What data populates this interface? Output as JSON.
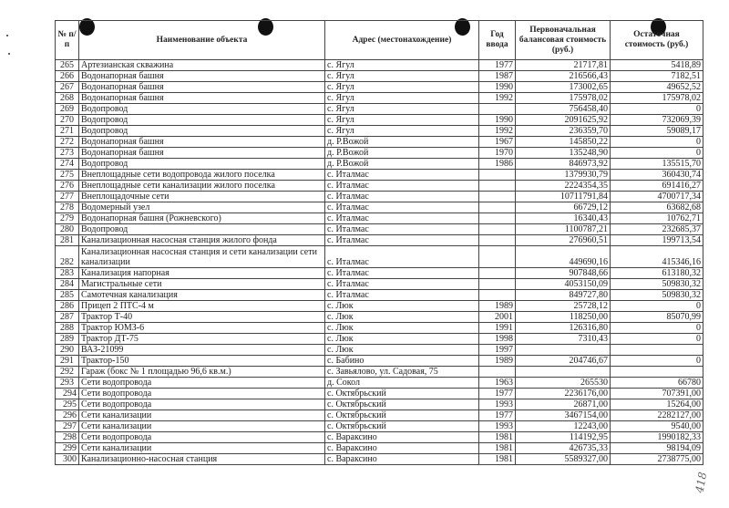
{
  "header": {
    "no": "№ п/п",
    "name": "Наименование объекта",
    "address": "Адрес (местонахождение)",
    "year": "Год ввода",
    "initial": "Первоначальная балансовая стоимость (руб.)",
    "residual": "Остаточная стоимость (руб.)"
  },
  "rows": [
    [
      "265",
      "Артезианская скважина",
      "с. Ягул",
      "1977",
      "21717,81",
      "5418,89"
    ],
    [
      "266",
      "Водонапорная башня",
      "с. Ягул",
      "1987",
      "216566,43",
      "7182,51"
    ],
    [
      "267",
      "Водонапорная башня",
      "с. Ягул",
      "1990",
      "173002,65",
      "49652,52"
    ],
    [
      "268",
      "Водонапорная башня",
      "с. Ягул",
      "1992",
      "175978,02",
      "175978,02"
    ],
    [
      "269",
      "Водопровод",
      "с. Ягул",
      "",
      "756458,40",
      "0"
    ],
    [
      "270",
      "Водопровод",
      "с. Ягул",
      "1990",
      "2091625,92",
      "732069,39"
    ],
    [
      "271",
      "Водопровод",
      "с. Ягул",
      "1992",
      "236359,70",
      "59089,17"
    ],
    [
      "272",
      "Водонапорная башня",
      "д. Р.Вожой",
      "1967",
      "145850,22",
      "0"
    ],
    [
      "273",
      "Водонапорная башня",
      "д. Р.Вожой",
      "1970",
      "135248,90",
      "0"
    ],
    [
      "274",
      "Водопровод",
      "д. Р.Вожой",
      "1986",
      "846973,92",
      "135515,70"
    ],
    [
      "275",
      "Внеплощадные сети водопровода жилого поселка",
      "с. Италмас",
      "",
      "1379930,79",
      "360430,74"
    ],
    [
      "276",
      "Внеплощадные сети канализации жилого поселка",
      "с. Италмас",
      "",
      "2224354,35",
      "691416,27"
    ],
    [
      "277",
      "Внеплощадочные сети",
      "с. Италмас",
      "",
      "10711791,84",
      "4700717,34"
    ],
    [
      "278",
      "Водомерный узел",
      "с. Италмас",
      "",
      "66729,12",
      "63682,68"
    ],
    [
      "279",
      "Водонапорная башня (Рожневского)",
      "с. Италмас",
      "",
      "16340,43",
      "10762,71"
    ],
    [
      "280",
      "Водопровод",
      "с. Италмас",
      "",
      "1100787,21",
      "232685,37"
    ],
    [
      "281",
      "Канализационная насосная станция жилого фонда",
      "с. Италмас",
      "",
      "276960,51",
      "199713,54"
    ],
    [
      "282",
      "Канализационная насосная станция и сети канализации сети канализации",
      "с. Италмас",
      "",
      "449690,16",
      "415346,16"
    ],
    [
      "283",
      "Канализация напорная",
      "с. Италмас",
      "",
      "907848,66",
      "613180,32"
    ],
    [
      "284",
      "Магистральные сети",
      "с. Италмас",
      "",
      "4053150,09",
      "509830,32"
    ],
    [
      "285",
      "Самотечная канализация",
      "с. Италмас",
      "",
      "849727,80",
      "509830,32"
    ],
    [
      "286",
      "Прицеп 2 ПТС-4 м",
      "с. Люк",
      "1989",
      "25728,12",
      "0"
    ],
    [
      "287",
      "Трактор Т-40",
      "с. Люк",
      "2001",
      "118250,00",
      "85070,99"
    ],
    [
      "288",
      "Трактор ЮМЗ-6",
      "с. Люк",
      "1991",
      "126316,80",
      "0"
    ],
    [
      "289",
      "Трактор ДТ-75",
      "с. Люк",
      "1998",
      "7310,43",
      "0"
    ],
    [
      "290",
      "ВАЗ-21099",
      "с. Люк",
      "1997",
      "",
      ""
    ],
    [
      "291",
      "Трактор-150",
      "с. Бабино",
      "1989",
      "204746,67",
      "0"
    ],
    [
      "292",
      "Гараж (бокс № 1 площадью 96,6 кв.м.)",
      "с. Завьялово, ул. Садовая, 75",
      "",
      "",
      ""
    ],
    [
      "293",
      "Сети водопровода",
      "д. Сокол",
      "1963",
      "265530",
      "66780"
    ],
    [
      "294",
      "Сети водопровода",
      "с. Октябрьский",
      "1977",
      "2236176,00",
      "707391,00"
    ],
    [
      "295",
      "Сети водопровода",
      "с. Октябрьский",
      "1993",
      "26871,00",
      "15264,00"
    ],
    [
      "296",
      "Сети канализации",
      "с. Октябрьский",
      "1977",
      "3467154,00",
      "2282127,00"
    ],
    [
      "297",
      "Сети канализации",
      "с. Октябрьский",
      "1993",
      "12243,00",
      "9540,00"
    ],
    [
      "298",
      "Сети водопровода",
      "с. Вараксино",
      "1981",
      "114192,95",
      "1990182,33"
    ],
    [
      "299",
      "Сети канализации",
      "с. Вараксино",
      "1981",
      "426735,33",
      "98194,09"
    ],
    [
      "300",
      "Канализационно-насосная станция",
      "с. Вараксино",
      "1981",
      "5589327,00",
      "2738775,00"
    ]
  ],
  "page_number_handwritten": "418"
}
